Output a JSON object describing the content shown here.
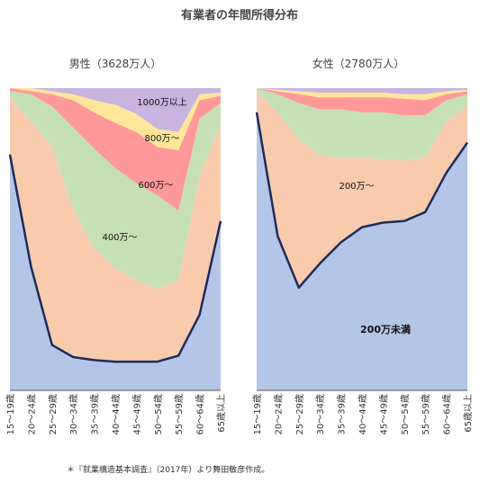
{
  "title": "有業者の年間所得分布",
  "footnote": "＊『就業構造基本調査』（2017年）より舞田敏彦作成。",
  "colors": {
    "under200": "#b4c6e7",
    "200to400": "#f8cbad",
    "400to600": "#c5e0b4",
    "600to800": "#ff9999",
    "800to1000": "#ffe699",
    "over1000": "#c9b3e0",
    "line": "#1f2a5c"
  },
  "chart_data": [
    {
      "type": "area",
      "title": "男性（3628万人）",
      "categories": [
        "15～19歳",
        "20～24歳",
        "25～29歳",
        "30～34歳",
        "35～39歳",
        "40～44歳",
        "45～49歳",
        "50～54歳",
        "55～59歳",
        "60～64歳",
        "65歳以上"
      ],
      "stacked_percent": true,
      "ylim": [
        0,
        100
      ],
      "series": [
        {
          "name": "200万未満",
          "values": [
            78,
            41,
            15,
            11,
            10,
            9.5,
            9.5,
            9.5,
            11.5,
            25,
            56
          ]
        },
        {
          "name": "200万～",
          "values": [
            19,
            48,
            66,
            49,
            37,
            31,
            27,
            24,
            25,
            46,
            32
          ]
        },
        {
          "name": "400万～",
          "values": [
            2,
            9,
            13,
            27,
            33,
            33,
            32,
            31,
            23,
            19,
            7
          ]
        },
        {
          "name": "600万～",
          "values": [
            1,
            1,
            4,
            9,
            12,
            15,
            17,
            16,
            20,
            6,
            2.5
          ]
        },
        {
          "name": "800万～",
          "values": [
            0,
            1,
            1,
            2,
            4,
            6,
            6,
            6,
            6,
            2,
            1
          ]
        },
        {
          "name": "1000万以上",
          "values": [
            0,
            0,
            1,
            2,
            4,
            5.5,
            8.5,
            13.5,
            14.5,
            2,
            1.5
          ]
        }
      ],
      "line_series": "200万未満"
    },
    {
      "type": "area",
      "title": "女性（2780万人）",
      "categories": [
        "15～19歳",
        "20～24歳",
        "25～29歳",
        "30～34歳",
        "35～39歳",
        "40～44歳",
        "45～49歳",
        "50～54歳",
        "55～59歳",
        "60～64歳",
        "65歳以上"
      ],
      "stacked_percent": true,
      "ylim": [
        0,
        100
      ],
      "series": [
        {
          "name": "200万未満",
          "values": [
            92,
            51,
            34,
            42,
            49,
            54,
            55.5,
            56,
            59,
            72,
            82
          ]
        },
        {
          "name": "200万～",
          "values": [
            7,
            41,
            49,
            36,
            28,
            23,
            21,
            20,
            18,
            17,
            12
          ]
        },
        {
          "name": "400万～",
          "values": [
            1,
            6,
            12,
            15,
            16,
            15,
            15.5,
            15,
            14,
            7,
            4
          ]
        },
        {
          "name": "600万～",
          "values": [
            0,
            1,
            3,
            4,
            4,
            5,
            5,
            5.5,
            5,
            2,
            1
          ]
        },
        {
          "name": "800万～",
          "values": [
            0,
            0.5,
            1,
            1.5,
            1.5,
            1.5,
            1.5,
            1.5,
            2,
            1,
            0.5
          ]
        },
        {
          "name": "1000万以上",
          "values": [
            0,
            0.5,
            1,
            1.5,
            1.5,
            1.5,
            1.5,
            2,
            2,
            1,
            0.5
          ]
        }
      ],
      "line_series": "200万未満"
    }
  ],
  "labels": {
    "male": [
      "1000万以上",
      "800万～",
      "600万～",
      "400万～"
    ],
    "female": [
      "200万～",
      "200万未満"
    ]
  }
}
